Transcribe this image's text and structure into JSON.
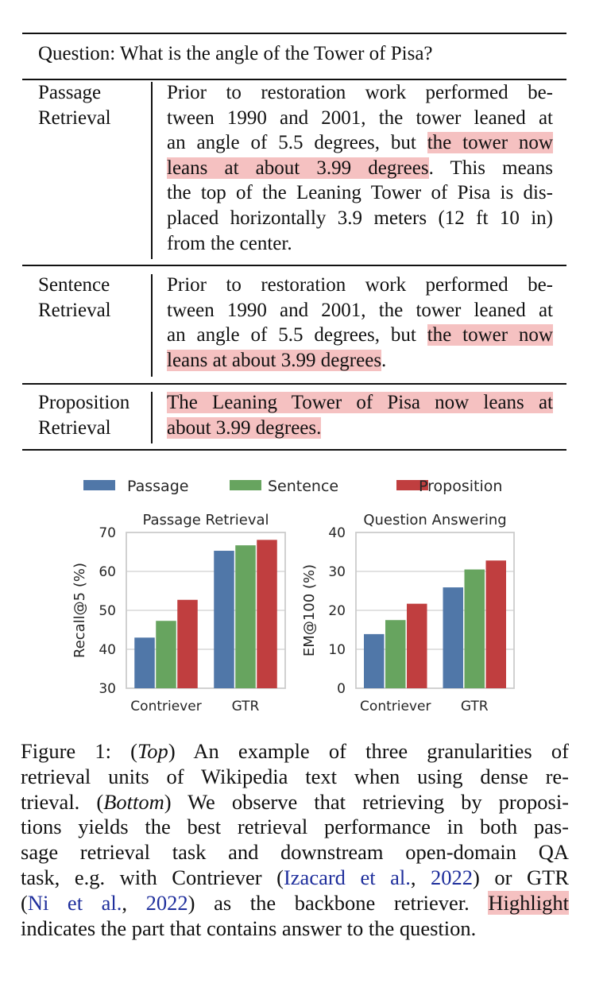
{
  "table": {
    "question": "Question: What is the angle of the Tower of Pisa?",
    "rows": [
      {
        "label": [
          "Passage",
          "Retrieval"
        ],
        "lines": [
          [
            {
              "t": "Prior to restoration work performed be-"
            }
          ],
          [
            {
              "t": "tween 1990 and 2001, the tower leaned at"
            }
          ],
          [
            {
              "t": "an angle of 5.5 degrees, but "
            },
            {
              "t": "the tower now",
              "hl": true
            }
          ],
          [
            {
              "t": "leans at about 3.99 degrees",
              "hl": true
            },
            {
              "t": ".  This means"
            }
          ],
          [
            {
              "t": "the top of the Leaning Tower of Pisa is dis-"
            }
          ],
          [
            {
              "t": "placed horizontally 3.9 meters (12 ft 10 in)"
            }
          ],
          [
            {
              "t": "from the center."
            }
          ]
        ]
      },
      {
        "label": [
          "Sentence",
          "Retrieval"
        ],
        "lines": [
          [
            {
              "t": "Prior to restoration work performed be-"
            }
          ],
          [
            {
              "t": "tween 1990 and 2001, the tower leaned at"
            }
          ],
          [
            {
              "t": "an angle of 5.5 degrees, but "
            },
            {
              "t": "the tower now",
              "hl": true
            }
          ],
          [
            {
              "t": "leans at about 3.99 degrees",
              "hl": true
            },
            {
              "t": "."
            }
          ]
        ]
      },
      {
        "label": [
          "Proposition",
          "Retrieval"
        ],
        "lines": [
          [
            {
              "t": "The Leaning Tower of Pisa now leans at",
              "hl": true
            }
          ],
          [
            {
              "t": "about 3.99 degrees.",
              "hl": true
            }
          ]
        ]
      }
    ]
  },
  "chart_data": [
    {
      "type": "bar",
      "title": "Passage Retrieval",
      "xlabel": "",
      "ylabel": "Recall@5 (%)",
      "categories": [
        "Contriever",
        "GTR"
      ],
      "ylim": [
        30,
        70
      ],
      "yticks": [
        30,
        40,
        50,
        60,
        70
      ],
      "grid": true,
      "legend": "top",
      "series": [
        {
          "name": "Passage",
          "color": "#5077a8",
          "values": [
            43.0,
            65.3
          ]
        },
        {
          "name": "Sentence",
          "color": "#67a45f",
          "values": [
            47.3,
            66.7
          ]
        },
        {
          "name": "Proposition",
          "color": "#c03e3f",
          "values": [
            52.7,
            68.1
          ]
        }
      ]
    },
    {
      "type": "bar",
      "title": "Question Answering",
      "xlabel": "",
      "ylabel": "EM@100 (%)",
      "categories": [
        "Contriever",
        "GTR"
      ],
      "ylim": [
        0,
        40
      ],
      "yticks": [
        0,
        10,
        20,
        30,
        40
      ],
      "grid": true,
      "legend": "top",
      "series": [
        {
          "name": "Passage",
          "color": "#5077a8",
          "values": [
            13.9,
            25.9
          ]
        },
        {
          "name": "Sentence",
          "color": "#67a45f",
          "values": [
            17.5,
            30.5
          ]
        },
        {
          "name": "Proposition",
          "color": "#c03e3f",
          "values": [
            21.7,
            32.8
          ]
        }
      ]
    }
  ],
  "legend": [
    "Passage",
    "Sentence",
    "Proposition"
  ],
  "caption": [
    [
      {
        "t": "Figure 1: ("
      },
      {
        "t": "Top",
        "i": true
      },
      {
        "t": ") An example of three granularities of"
      }
    ],
    [
      {
        "t": "retrieval units of Wikipedia text when using dense re-"
      }
    ],
    [
      {
        "t": "trieval. ("
      },
      {
        "t": "Bottom",
        "i": true
      },
      {
        "t": ") We observe that retrieving by proposi-"
      }
    ],
    [
      {
        "t": "tions yields the best retrieval performance in both pas-"
      }
    ],
    [
      {
        "t": "sage retrieval task and downstream open-domain QA"
      }
    ],
    [
      {
        "t": "task, e.g. with Contriever ("
      },
      {
        "t": "Izacard et al.",
        "lk": true
      },
      {
        "t": ", "
      },
      {
        "t": "2022",
        "lk": true
      },
      {
        "t": ") or GTR"
      }
    ],
    [
      {
        "t": "("
      },
      {
        "t": "Ni et al.",
        "lk": true
      },
      {
        "t": ", "
      },
      {
        "t": "2022",
        "lk": true
      },
      {
        "t": ") as the backbone retriever.  "
      },
      {
        "t": "Highlight",
        "hl": true
      }
    ],
    [
      {
        "t": "indicates the part that contains answer to the question."
      }
    ]
  ]
}
